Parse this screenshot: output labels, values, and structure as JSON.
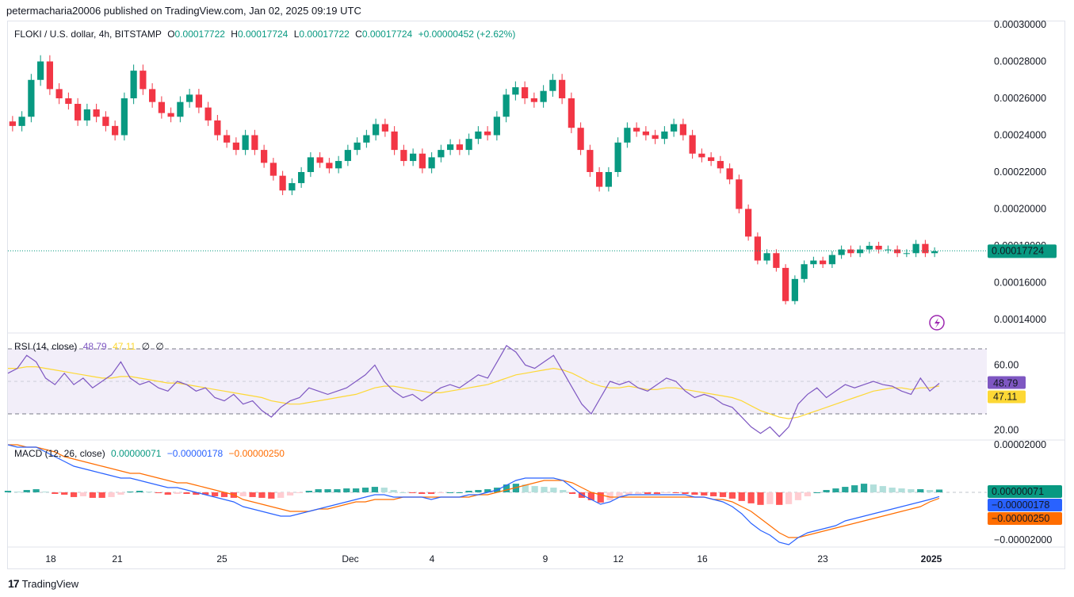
{
  "header": {
    "publish_line": "petermacharia20006 published on TradingView.com, Jan 02, 2025 09:19 UTC"
  },
  "main_legend": {
    "symbol": "FLOKI / U.S. dollar, 4h, BITSTAMP",
    "o_label": "O",
    "o_value": "0.00017722",
    "h_label": "H",
    "h_value": "0.00017724",
    "l_label": "L",
    "l_value": "0.00017722",
    "c_label": "C",
    "c_value": "0.00017724",
    "change": "+0.00000452 (+2.62%)"
  },
  "rsi_legend": {
    "title": "RSI (14, close)",
    "rsi": "48.79",
    "ma": "47.11",
    "extra1": "∅",
    "extra2": "∅"
  },
  "macd_legend": {
    "title": "MACD (12, 26, close)",
    "hist": "0.00000071",
    "macd": "−0.00000178",
    "signal": "−0.00000250"
  },
  "footer": {
    "brand": "TradingView"
  },
  "colors": {
    "up": "#089981",
    "down": "#f23645",
    "rsi_line": "#7e57c2",
    "rsi_ma": "#fdd835",
    "macd_line": "#2962ff",
    "signal_line": "#ff6d00"
  },
  "chart_data": [
    {
      "type": "candlestick",
      "title": "FLOKI / U.S. dollar, 4h, BITSTAMP",
      "y_ticks": [
        "0.00030000",
        "0.00028000",
        "0.00026000",
        "0.00024000",
        "0.00022000",
        "0.00020000",
        "0.00018000",
        "0.00016000",
        "0.00014000"
      ],
      "ylim": [
        0.000132,
        0.000302
      ],
      "x_ticks": [
        "18",
        "21",
        "25",
        "Dec",
        "4",
        "9",
        "12",
        "16",
        "23",
        "2025"
      ],
      "last_price_label": "0.00017724",
      "close_series": [
        0.000245,
        0.00025,
        0.00027,
        0.00028,
        0.000265,
        0.00026,
        0.000257,
        0.000248,
        0.000254,
        0.00025,
        0.000245,
        0.00024,
        0.00026,
        0.000275,
        0.000265,
        0.000258,
        0.000252,
        0.00025,
        0.000258,
        0.000262,
        0.000255,
        0.000248,
        0.00024,
        0.000236,
        0.000232,
        0.00024,
        0.000232,
        0.000225,
        0.000218,
        0.00021,
        0.000214,
        0.00022,
        0.000228,
        0.000225,
        0.000222,
        0.000226,
        0.000232,
        0.000236,
        0.00024,
        0.000246,
        0.000242,
        0.000232,
        0.000226,
        0.00023,
        0.000222,
        0.000228,
        0.000232,
        0.000235,
        0.000232,
        0.000238,
        0.000242,
        0.00024,
        0.00025,
        0.000262,
        0.000266,
        0.00026,
        0.000258,
        0.000264,
        0.00027,
        0.00026,
        0.000244,
        0.000232,
        0.00022,
        0.000212,
        0.00022,
        0.000236,
        0.000244,
        0.000242,
        0.00024,
        0.000238,
        0.000242,
        0.000246,
        0.00024,
        0.00023,
        0.000228,
        0.000226,
        0.000222,
        0.000216,
        0.0002,
        0.000185,
        0.000172,
        0.000176,
        0.000168,
        0.00015,
        0.000162,
        0.00017,
        0.000172,
        0.00017,
        0.000175,
        0.000178,
        0.000176,
        0.000178,
        0.00018,
        0.000178,
        0.000178,
        0.000176,
        0.000176,
        0.000181,
        0.000176,
        0.000177
      ]
    },
    {
      "type": "line",
      "title": "RSI (14, close)",
      "y_ticks": [
        "60.00",
        "20.00"
      ],
      "ylim": [
        10,
        80
      ],
      "bands": [
        70,
        30
      ],
      "last_labels": [
        "48.79",
        "47.11"
      ],
      "series": [
        {
          "name": "RSI",
          "values": [
            55,
            58,
            66,
            62,
            52,
            48,
            55,
            48,
            52,
            46,
            50,
            54,
            62,
            52,
            48,
            50,
            46,
            44,
            50,
            48,
            44,
            46,
            40,
            38,
            42,
            36,
            38,
            32,
            28,
            34,
            38,
            40,
            46,
            44,
            42,
            44,
            46,
            50,
            54,
            60,
            50,
            44,
            40,
            42,
            38,
            42,
            46,
            48,
            46,
            50,
            54,
            52,
            62,
            72,
            68,
            60,
            58,
            62,
            66,
            56,
            46,
            36,
            30,
            40,
            50,
            48,
            50,
            46,
            44,
            48,
            52,
            50,
            44,
            40,
            42,
            40,
            36,
            34,
            28,
            22,
            18,
            22,
            16,
            22,
            36,
            42,
            46,
            40,
            44,
            48,
            46,
            48,
            50,
            48,
            47,
            44,
            42,
            52,
            44,
            48.79
          ]
        },
        {
          "name": "RSI-based MA",
          "values": [
            58,
            58,
            59,
            59,
            58,
            57,
            56,
            55,
            54,
            53,
            52,
            52,
            53,
            53,
            52,
            51,
            50,
            49,
            49,
            48,
            47,
            46,
            45,
            44,
            43,
            42,
            41,
            40,
            38,
            37,
            36,
            36,
            37,
            38,
            39,
            40,
            41,
            42,
            44,
            46,
            47,
            47,
            46,
            45,
            44,
            43,
            43,
            44,
            45,
            46,
            47,
            48,
            50,
            52,
            54,
            55,
            56,
            57,
            58,
            57,
            55,
            52,
            49,
            47,
            46,
            46,
            47,
            46,
            45,
            45,
            46,
            46,
            45,
            44,
            43,
            42,
            41,
            40,
            38,
            35,
            32,
            30,
            28,
            27,
            28,
            30,
            32,
            34,
            36,
            38,
            40,
            42,
            44,
            45,
            46,
            46,
            45,
            46,
            46,
            47.11
          ]
        }
      ]
    },
    {
      "type": "bar+line",
      "title": "MACD (12, 26, close)",
      "y_ticks": [
        "0.00002000",
        "−0.00002000"
      ],
      "ylim": [
        -2.4e-05,
        2.1e-05
      ],
      "last_labels": [
        "0.00000071",
        "−0.00000178",
        "−0.00000250"
      ],
      "series": [
        {
          "name": "Histogram",
          "values": [
            0.4,
            0.2,
            0.6,
            0.8,
            0.2,
            -0.4,
            -0.6,
            -1.2,
            -1.0,
            -1.4,
            -1.4,
            -1.2,
            -0.6,
            0.2,
            0.4,
            0.2,
            -0.2,
            -0.6,
            -0.4,
            -0.4,
            -0.6,
            -0.6,
            -1.0,
            -1.2,
            -1.4,
            -1.0,
            -1.2,
            -1.4,
            -1.6,
            -1.4,
            -0.8,
            -0.2,
            0.4,
            0.8,
            0.8,
            0.8,
            1.0,
            1.0,
            1.2,
            1.4,
            1.2,
            0.6,
            0.0,
            -0.2,
            -0.4,
            -0.4,
            -0.2,
            0.0,
            0.0,
            0.4,
            0.6,
            0.8,
            1.2,
            2.0,
            2.2,
            2.0,
            1.6,
            1.4,
            1.2,
            0.6,
            -0.4,
            -1.4,
            -2.0,
            -2.6,
            -2.0,
            -1.0,
            -0.6,
            -0.4,
            -0.4,
            -0.4,
            -0.2,
            -0.2,
            -0.4,
            -0.6,
            -0.8,
            -1.0,
            -1.2,
            -1.6,
            -2.2,
            -2.8,
            -3.2,
            -3.0,
            -3.2,
            -3.0,
            -2.0,
            -1.0,
            0.0,
            0.6,
            1.0,
            1.4,
            1.8,
            2.2,
            2.0,
            1.6,
            1.2,
            1.0,
            0.8,
            0.8,
            0.6,
            0.71
          ]
        },
        {
          "name": "MACD",
          "values": [
            20,
            19,
            19,
            19,
            17,
            15,
            13,
            11,
            10,
            9,
            8,
            7,
            6,
            6,
            5,
            4,
            3,
            2,
            2,
            1,
            0,
            -1,
            -2,
            -3,
            -4,
            -6,
            -7,
            -8,
            -9,
            -10,
            -10,
            -9,
            -8,
            -7,
            -6,
            -5,
            -4,
            -3,
            -2,
            -1,
            -1,
            -2,
            -2,
            -2,
            -2,
            -3,
            -2,
            -2,
            -2,
            -1,
            -1,
            0,
            1,
            3,
            5,
            6,
            6,
            6,
            6,
            5,
            2,
            -1,
            -3,
            -5,
            -4,
            -2,
            -1,
            -1,
            -1,
            -1,
            -1,
            -1,
            -1,
            -2,
            -2,
            -3,
            -4,
            -6,
            -9,
            -13,
            -16,
            -18,
            -21,
            -22,
            -19,
            -17,
            -16,
            -15,
            -14,
            -12,
            -11,
            -10,
            -9,
            -8,
            -7,
            -6,
            -5,
            -4,
            -3,
            -1.78
          ]
        },
        {
          "name": "Signal",
          "values": [
            20,
            20,
            19,
            19,
            18,
            17,
            15,
            14,
            13,
            12,
            11,
            10,
            9,
            8,
            8,
            7,
            6,
            5,
            4,
            4,
            3,
            2,
            1,
            0,
            -1,
            -3,
            -4,
            -5,
            -6,
            -7,
            -8,
            -8,
            -8,
            -7,
            -7,
            -6,
            -5,
            -4,
            -4,
            -3,
            -3,
            -3,
            -2,
            -2,
            -2,
            -2,
            -2,
            -2,
            -2,
            -2,
            -1,
            -1,
            0,
            1,
            2,
            3,
            4,
            5,
            5,
            5,
            4,
            2,
            0,
            -1,
            -2,
            -2,
            -2,
            -2,
            -2,
            -2,
            -2,
            -2,
            -2,
            -2,
            -2,
            -3,
            -3,
            -4,
            -6,
            -8,
            -11,
            -14,
            -17,
            -19,
            -19,
            -18,
            -17,
            -16,
            -15,
            -14,
            -13,
            -12,
            -11,
            -10,
            -9,
            -8,
            -7,
            -6,
            -4,
            -2.5
          ]
        }
      ]
    }
  ]
}
